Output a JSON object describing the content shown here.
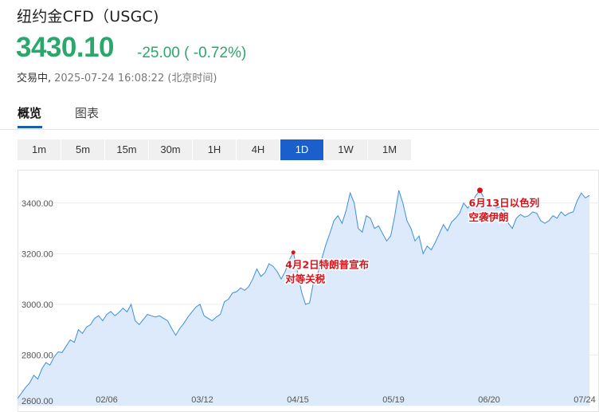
{
  "header": {
    "title": "纽约金CFD（USGC)",
    "price": "3430.10",
    "change": "-25.00 ( -0.72%)",
    "status": "交易中,",
    "timestamp": "2025-07-24 16:08:22 (北京时间)"
  },
  "tabs": [
    {
      "label": "概览",
      "active": true
    },
    {
      "label": "图表",
      "active": false
    }
  ],
  "ranges": [
    {
      "label": "1m",
      "active": false
    },
    {
      "label": "5m",
      "active": false
    },
    {
      "label": "15m",
      "active": false
    },
    {
      "label": "30m",
      "active": false
    },
    {
      "label": "1H",
      "active": false
    },
    {
      "label": "4H",
      "active": false
    },
    {
      "label": "1D",
      "active": true
    },
    {
      "label": "1W",
      "active": false
    },
    {
      "label": "1M",
      "active": false
    }
  ],
  "colors": {
    "up_green": "#2aa86b",
    "accent_blue": "#1a5fcc",
    "line": "#3d8fd9",
    "area": "#dceafb",
    "annotation": "#d8121b"
  },
  "chart_data": {
    "type": "area",
    "ylim": [
      2600,
      3500
    ],
    "y_ticks": [
      "2600.00",
      "2800.00",
      "3000.00",
      "3200.00",
      "3400.00"
    ],
    "x_ticks": [
      "02/06",
      "03/12",
      "04/15",
      "05/19",
      "06/20",
      "07/24"
    ],
    "grid": true,
    "series": [
      {
        "values": [
          2628,
          2650,
          2672,
          2690,
          2720,
          2705,
          2745,
          2770,
          2760,
          2792,
          2812,
          2810,
          2835,
          2860,
          2850,
          2900,
          2885,
          2910,
          2920,
          2945,
          2955,
          2935,
          2960,
          2972,
          2955,
          2968,
          2985,
          2970,
          3000,
          2935,
          2920,
          2940,
          2960,
          2955,
          2950,
          2955,
          2945,
          2935,
          2905,
          2878,
          2905,
          2925,
          2950,
          2970,
          2990,
          3000,
          2955,
          2945,
          2935,
          2950,
          2960,
          3010,
          3020,
          3045,
          3050,
          3065,
          3055,
          3070,
          3100,
          3140,
          3110,
          3125,
          3160,
          3150,
          3130,
          3100,
          3130,
          3175,
          3205,
          3130,
          3050,
          3000,
          3005,
          3090,
          3120,
          3180,
          3235,
          3280,
          3330,
          3350,
          3320,
          3370,
          3440,
          3400,
          3300,
          3285,
          3350,
          3340,
          3300,
          3310,
          3280,
          3250,
          3270,
          3350,
          3450,
          3400,
          3330,
          3300,
          3250,
          3270,
          3200,
          3230,
          3215,
          3245,
          3280,
          3315,
          3290,
          3325,
          3340,
          3360,
          3400,
          3380,
          3400,
          3430,
          3450,
          3420,
          3400,
          3395,
          3380,
          3385,
          3370,
          3320,
          3300,
          3340,
          3355,
          3345,
          3350,
          3365,
          3360,
          3330,
          3320,
          3330,
          3350,
          3340,
          3365,
          3350,
          3360,
          3365,
          3410,
          3440,
          3420,
          3430
        ]
      }
    ],
    "annotations": [
      {
        "lines": [
          "4月2日特朗普宣布",
          "对等关税"
        ],
        "point_index": 68
      },
      {
        "lines": [
          "6月13日以色列",
          "空袭伊朗"
        ],
        "point_index": 114
      }
    ]
  }
}
